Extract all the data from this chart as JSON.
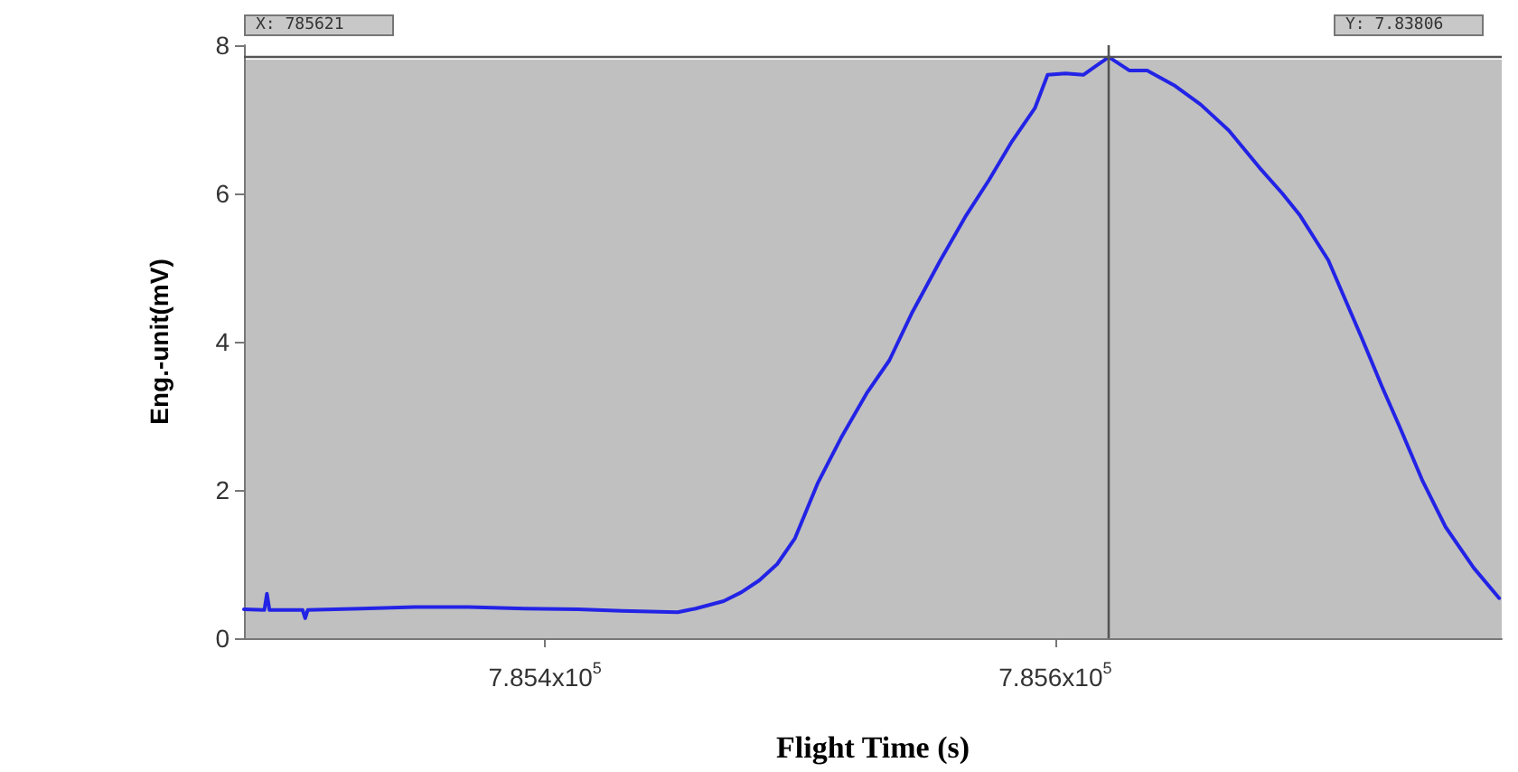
{
  "chart_data": {
    "type": "line",
    "xlabel": "Flight Time (s)",
    "ylabel": "Eng.-unit(mV)",
    "x": [
      785282,
      785290,
      785291,
      785292,
      785305,
      785306,
      785307,
      785328,
      785349,
      785370,
      785392,
      785413,
      785430,
      785452,
      785459,
      785470,
      785477,
      785484,
      785491,
      785498,
      785507,
      785516,
      785526,
      785535,
      785544,
      785555,
      785565,
      785574,
      785583,
      785592,
      785597,
      785604,
      785611,
      785616,
      785621,
      785629,
      785636,
      785647,
      785657,
      785668,
      785680,
      785689,
      785696,
      785707,
      785720,
      785728,
      785735,
      785744,
      785753,
      785764,
      785774
    ],
    "series": [
      {
        "color": "#2323e6",
        "values": [
          0.39,
          0.38,
          0.6,
          0.38,
          0.38,
          0.27,
          0.38,
          0.4,
          0.42,
          0.42,
          0.4,
          0.39,
          0.37,
          0.35,
          0.4,
          0.5,
          0.62,
          0.78,
          1.0,
          1.35,
          2.1,
          2.7,
          3.3,
          3.75,
          4.4,
          5.1,
          5.7,
          6.18,
          6.7,
          7.15,
          7.6,
          7.62,
          7.6,
          7.72,
          7.84,
          7.66,
          7.66,
          7.45,
          7.2,
          6.85,
          6.35,
          6.0,
          5.7,
          5.1,
          4.06,
          3.4,
          2.85,
          2.12,
          1.5,
          0.95,
          0.54
        ]
      }
    ],
    "xlim": [
      785282,
      785775
    ],
    "ylim": [
      0,
      8
    ],
    "xticks": [
      {
        "value": 785400,
        "label": "7.854x10$^{5}$"
      },
      {
        "value": 785600,
        "label": "7.856x10$^{5}$"
      }
    ],
    "yticks": [
      0,
      2,
      4,
      6,
      8
    ],
    "ref_lines": [
      {
        "axis": "x",
        "value": 785621,
        "color": "#555555"
      },
      {
        "axis": "y",
        "value": 7.83806,
        "color": "#555555"
      }
    ],
    "annotations": [
      "X: 785621",
      "Y: 7.83806"
    ],
    "grid": false,
    "marker": "none",
    "line_style": "solid"
  }
}
